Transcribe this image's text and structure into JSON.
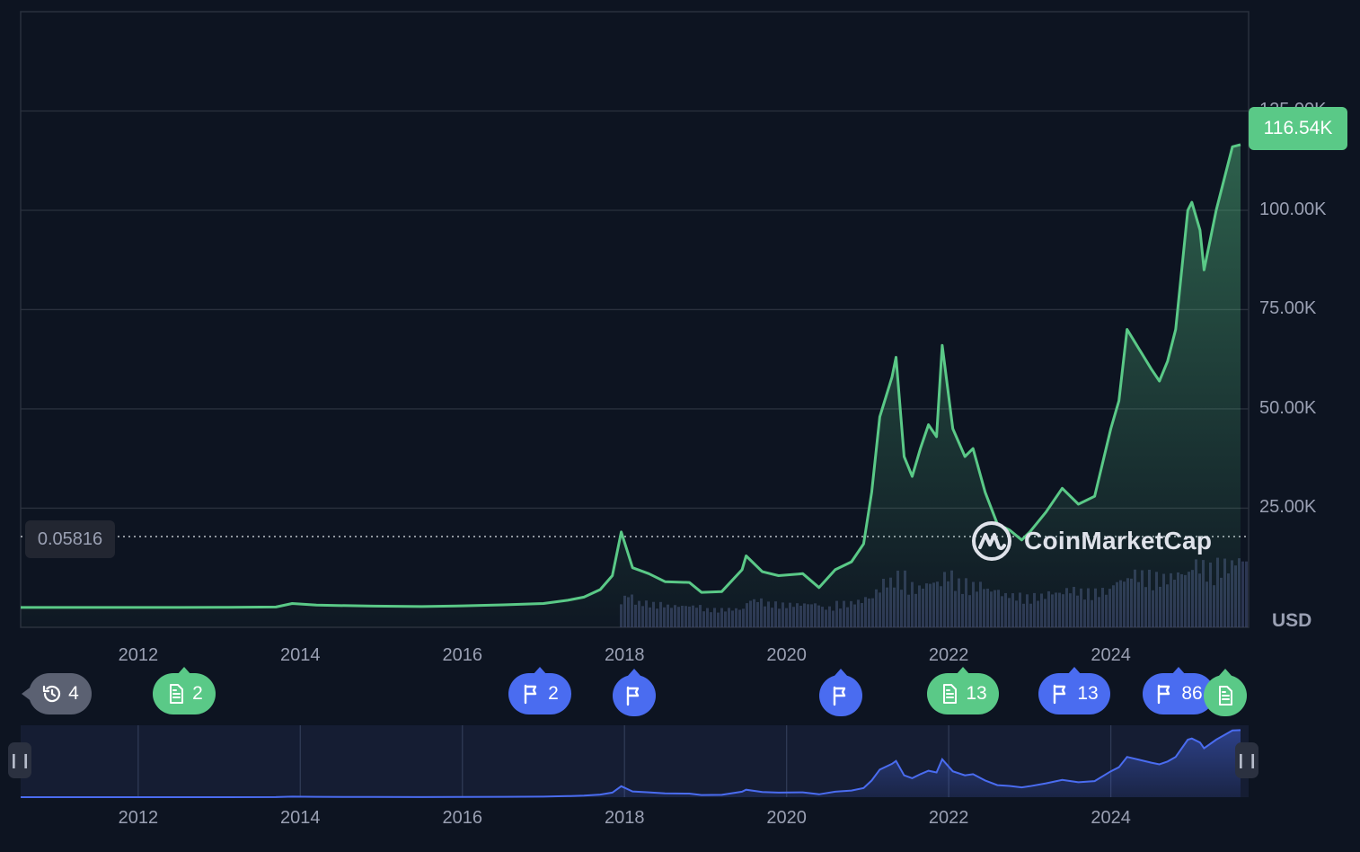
{
  "chart_data": {
    "type": "area",
    "series": [
      {
        "x": [
          2010.55,
          2011.0,
          2011.45,
          2011.9,
          2012.5,
          2013.0,
          2013.7,
          2013.9,
          2014.2,
          2014.9,
          2015.5,
          2016.0,
          2016.5,
          2017.0,
          2017.3,
          2017.5,
          2017.7,
          2017.85,
          2017.96,
          2018.1,
          2018.3,
          2018.5,
          2018.8,
          2018.95,
          2019.2,
          2019.45,
          2019.5,
          2019.7,
          2019.9,
          2020.2,
          2020.4,
          2020.6,
          2020.8,
          2020.95,
          2021.05,
          2021.15,
          2021.3,
          2021.35,
          2021.45,
          2021.55,
          2021.65,
          2021.75,
          2021.85,
          2021.92,
          2022.05,
          2022.2,
          2022.3,
          2022.45,
          2022.6,
          2022.75,
          2022.9,
          2023.0,
          2023.2,
          2023.4,
          2023.6,
          2023.8,
          2024.0,
          2024.1,
          2024.2,
          2024.35,
          2024.5,
          2024.6,
          2024.7,
          2024.8,
          2024.95,
          2025.0,
          2025.1,
          2025.15,
          2025.3,
          2025.5,
          2025.6
        ],
        "values": [
          0.06,
          0.3,
          10,
          3,
          6,
          13,
          120,
          1000,
          600,
          350,
          230,
          400,
          650,
          1000,
          1800,
          2600,
          4500,
          8000,
          19000,
          10000,
          8500,
          6500,
          6300,
          3800,
          4000,
          9500,
          13000,
          9000,
          8000,
          8500,
          5000,
          9500,
          11500,
          16000,
          29000,
          48000,
          58000,
          63000,
          38000,
          33000,
          40000,
          46000,
          43000,
          66000,
          45000,
          38000,
          40000,
          29000,
          21000,
          19500,
          17000,
          19000,
          24000,
          30000,
          26000,
          28000,
          45000,
          52000,
          70000,
          65000,
          60000,
          57000,
          62000,
          70000,
          100000,
          102000,
          95000,
          85000,
          100000,
          116000,
          116540
        ],
        "color": "#5ac987"
      }
    ],
    "xlim": [
      2010.55,
      2025.7
    ],
    "ylim": [
      -5000,
      150000
    ],
    "x_ticks": [
      "2012",
      "2014",
      "2016",
      "2018",
      "2020",
      "2022",
      "2024"
    ],
    "y_ticks": [
      "25.00K",
      "50.00K",
      "75.00K",
      "100.00K",
      "125.00K"
    ],
    "y_tick_values": [
      25000,
      50000,
      75000,
      100000,
      125000
    ],
    "current_price": "116.54K",
    "base_price": "0.05816",
    "currency": "USD",
    "grid": true
  },
  "watermark": "CoinMarketCap",
  "colors": {
    "background": "#0d1421",
    "line": "#5ac987",
    "nav_line": "#4a6cf0",
    "event_green": "#5ac987",
    "event_blue": "#4a6cf0"
  },
  "events": [
    {
      "icon": "history-icon",
      "count": "4",
      "color": "gray"
    },
    {
      "icon": "document-icon",
      "count": "2",
      "color": "green"
    },
    {
      "icon": "flag-icon",
      "count": "2",
      "color": "blue"
    },
    {
      "icon": "flag-icon",
      "count": "",
      "color": "blue"
    },
    {
      "icon": "flag-icon",
      "count": "",
      "color": "blue"
    },
    {
      "icon": "document-icon",
      "count": "13",
      "color": "green"
    },
    {
      "icon": "flag-icon",
      "count": "13",
      "color": "blue"
    },
    {
      "icon": "flag-icon",
      "count": "86",
      "color": "blue"
    },
    {
      "icon": "document-icon",
      "count": "",
      "color": "green"
    }
  ],
  "navigator": {
    "x_ticks": [
      "2012",
      "2014",
      "2016",
      "2018",
      "2020",
      "2022",
      "2024"
    ]
  }
}
